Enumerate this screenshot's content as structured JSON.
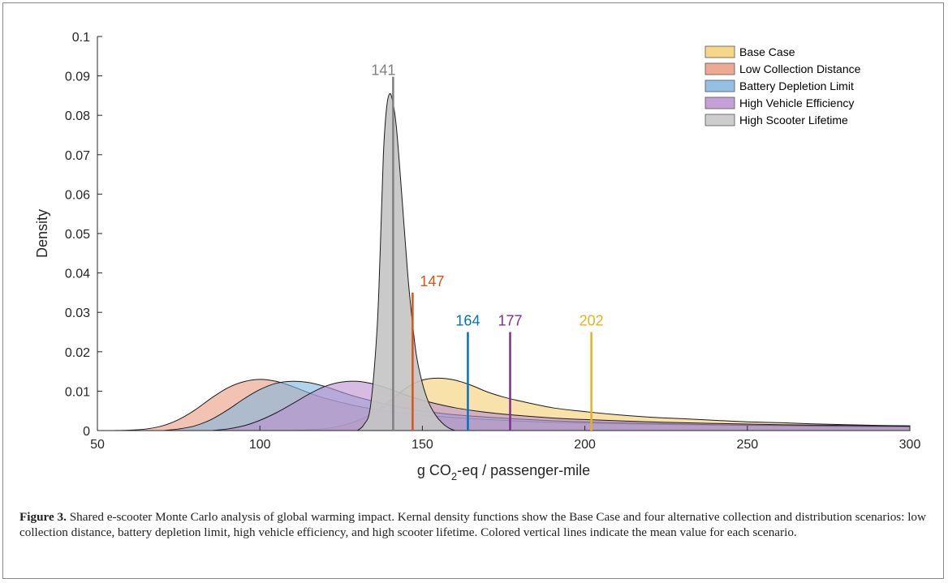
{
  "chart_data": {
    "type": "area",
    "subtype": "kernel-density",
    "xlabel_parts": [
      "g CO",
      "2",
      "-eq / passenger-mile"
    ],
    "ylabel": "Density",
    "xlim": [
      50,
      300
    ],
    "ylim": [
      0,
      0.1
    ],
    "xticks": [
      50,
      100,
      150,
      200,
      250,
      300
    ],
    "yticks": [
      0,
      0.01,
      0.02,
      0.03,
      0.04,
      0.05,
      0.06,
      0.07,
      0.08,
      0.09,
      0.1
    ],
    "ytick_labels": [
      "0",
      "0.01",
      "0.02",
      "0.03",
      "0.04",
      "0.05",
      "0.06",
      "0.07",
      "0.08",
      "0.09",
      "0.1"
    ],
    "legend_position": "top-right",
    "grid": false,
    "series": [
      {
        "name": "Base Case",
        "color": "#f4cf72",
        "mean_color": "#e8b21a",
        "mean": 202,
        "mean_line_top": 0.025,
        "x": [
          110,
          120,
          125,
          130,
          135,
          140,
          145,
          150,
          155,
          160,
          165,
          170,
          175,
          180,
          190,
          200,
          210,
          220,
          230,
          240,
          250,
          260,
          270,
          280,
          290,
          300
        ],
        "y": [
          0,
          0.0005,
          0.0012,
          0.0025,
          0.0045,
          0.0075,
          0.0108,
          0.0128,
          0.0133,
          0.0128,
          0.0115,
          0.0098,
          0.0085,
          0.0075,
          0.0058,
          0.0048,
          0.004,
          0.0034,
          0.003,
          0.0026,
          0.0022,
          0.002,
          0.0017,
          0.0015,
          0.0013,
          0.0012
        ]
      },
      {
        "name": "Low Collection Distance",
        "color": "#ea9b7e",
        "mean_color": "#d95319",
        "mean": 147,
        "mean_line_top": 0.035,
        "x": [
          55,
          60,
          65,
          70,
          75,
          80,
          85,
          90,
          95,
          100,
          105,
          110,
          115,
          120,
          130,
          140,
          150,
          160,
          170,
          180,
          190,
          200,
          220,
          240,
          260,
          280,
          300
        ],
        "y": [
          0,
          0.0001,
          0.0004,
          0.0012,
          0.0028,
          0.0052,
          0.0082,
          0.0108,
          0.0124,
          0.013,
          0.0125,
          0.0112,
          0.0096,
          0.0082,
          0.0062,
          0.0048,
          0.0039,
          0.0033,
          0.0028,
          0.0024,
          0.0021,
          0.0019,
          0.0016,
          0.0014,
          0.0012,
          0.001,
          0.001
        ]
      },
      {
        "name": "Battery Depletion Limit",
        "color": "#7fb6e0",
        "mean_color": "#0072bd",
        "mean": 164,
        "mean_line_top": 0.025,
        "x": [
          70,
          75,
          80,
          85,
          90,
          95,
          100,
          105,
          110,
          115,
          120,
          125,
          130,
          140,
          150,
          160,
          170,
          180,
          190,
          200,
          220,
          240,
          260,
          280,
          300
        ],
        "y": [
          0,
          0.0004,
          0.0012,
          0.0028,
          0.0052,
          0.008,
          0.0104,
          0.012,
          0.0125,
          0.0122,
          0.0112,
          0.0098,
          0.0085,
          0.0065,
          0.005,
          0.004,
          0.0034,
          0.0029,
          0.0025,
          0.0022,
          0.0018,
          0.0015,
          0.0013,
          0.0011,
          0.001
        ]
      },
      {
        "name": "High Vehicle Efficiency",
        "color": "#bb8fcf",
        "mean_color": "#7e2f8e",
        "mean": 177,
        "mean_line_top": 0.025,
        "x": [
          85,
          90,
          95,
          100,
          105,
          110,
          115,
          120,
          125,
          130,
          135,
          140,
          145,
          150,
          160,
          170,
          180,
          190,
          200,
          220,
          240,
          260,
          280,
          300
        ],
        "y": [
          0,
          0.0004,
          0.0012,
          0.0026,
          0.0045,
          0.0068,
          0.0092,
          0.0112,
          0.0123,
          0.0125,
          0.0118,
          0.0105,
          0.009,
          0.0077,
          0.0058,
          0.0046,
          0.0038,
          0.0032,
          0.0028,
          0.0022,
          0.0018,
          0.0015,
          0.0013,
          0.0011
        ]
      },
      {
        "name": "High Scooter Lifetime",
        "color": "#c4c4c4",
        "mean_color": "#808080",
        "mean": 141,
        "mean_line_top": 0.0898,
        "x": [
          130,
          132,
          134,
          136,
          137,
          138,
          139,
          140,
          141,
          142,
          143,
          144,
          145,
          146,
          148,
          150,
          152,
          154,
          156,
          158,
          160
        ],
        "y": [
          0,
          0.0015,
          0.006,
          0.025,
          0.045,
          0.07,
          0.082,
          0.0855,
          0.083,
          0.077,
          0.067,
          0.056,
          0.045,
          0.035,
          0.02,
          0.012,
          0.007,
          0.004,
          0.002,
          0.0007,
          0
        ]
      }
    ]
  },
  "caption": {
    "label": "Figure 3.",
    "text": "Shared e-scooter Monte Carlo analysis of global warming impact. Kernal density functions show the Base Case and four alternative collection and distribution scenarios: low collection distance, battery depletion limit, high vehicle efficiency, and high scooter lifetime. Colored vertical lines indicate the mean value for each scenario."
  }
}
